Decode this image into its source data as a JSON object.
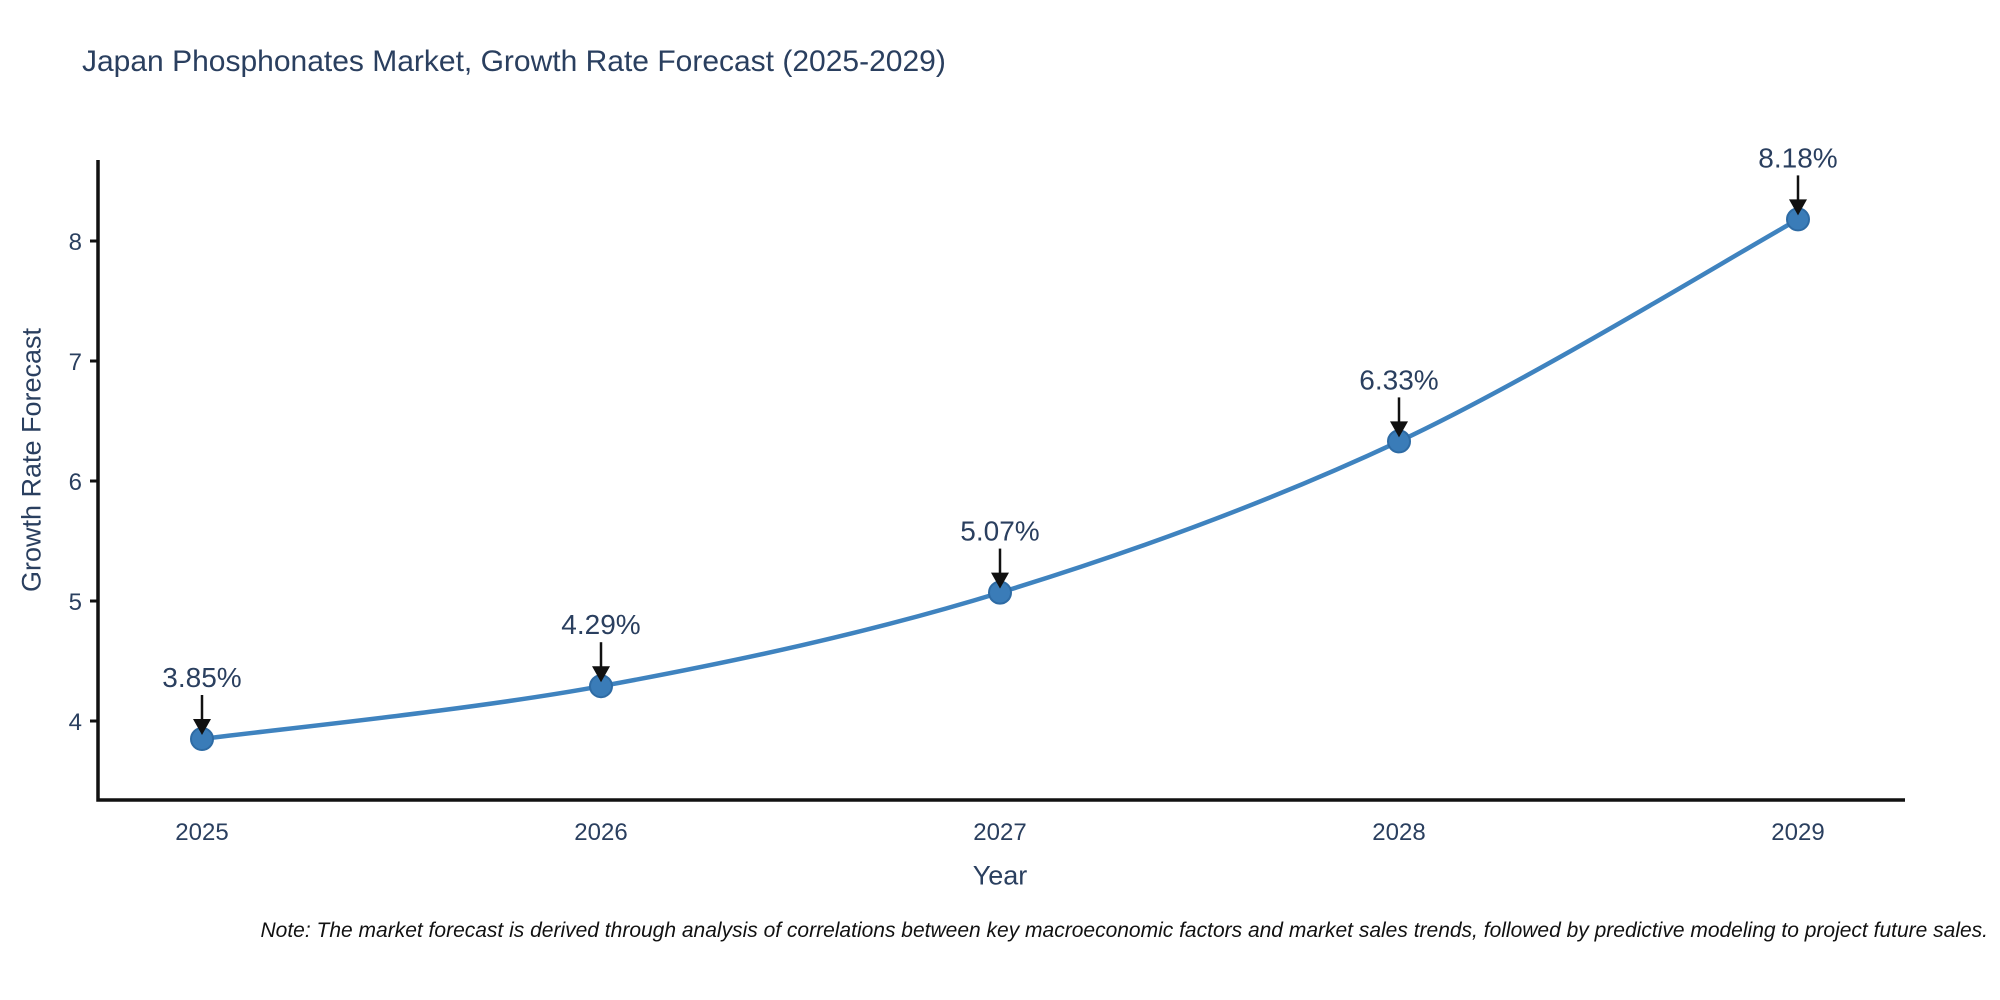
{
  "note": "Note: The market forecast is derived through analysis of correlations between key macroeconomic factors and market sales trends, followed by predictive modeling to project future sales.",
  "chart_data": {
    "type": "line",
    "title": "Japan Phosphonates Market, Growth Rate Forecast (2025-2029)",
    "xlabel": "Year",
    "ylabel": "Growth Rate Forecast",
    "categories": [
      "2025",
      "2026",
      "2027",
      "2028",
      "2029"
    ],
    "series": [
      {
        "name": "Growth Rate Forecast",
        "values": [
          3.85,
          4.29,
          5.07,
          6.33,
          8.18
        ],
        "data_labels": [
          "3.85%",
          "4.29%",
          "5.07%",
          "6.33%",
          "8.18%"
        ]
      }
    ],
    "y_ticks": [
      4,
      5,
      6,
      7,
      8
    ],
    "ylim": [
      3.34,
      8.68
    ],
    "line_shape": "spline",
    "grid": false,
    "legend_position": "none",
    "annotations_have_arrows": true,
    "colors": {
      "line": "#3f83bf",
      "marker_fill": "#3a7cb8",
      "marker_edge": "#2e6ba4",
      "arrow": "#111111",
      "axis": "#111111",
      "chart_text": "#2a3f5f",
      "note_text": "#111111",
      "background": "#ffffff"
    }
  }
}
